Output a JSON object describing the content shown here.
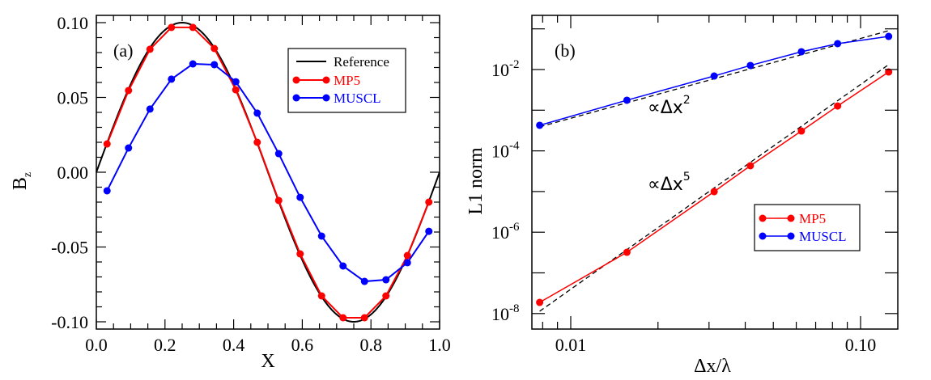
{
  "chart_data": [
    {
      "panel": "(a)",
      "type": "line",
      "title": "",
      "xlabel": "X",
      "ylabel": "B",
      "ylabel_subscript": "z",
      "xlim": [
        0.0,
        1.0
      ],
      "ylim": [
        -0.105,
        0.1055
      ],
      "xticks": [
        0.0,
        0.2,
        0.4,
        0.6,
        0.8,
        1.0
      ],
      "xtick_labels": [
        "0.0",
        "0.2",
        "0.4",
        "0.6",
        "0.8",
        "1.0"
      ],
      "xminor_step": 0.05,
      "yticks": [
        0.1,
        0.05,
        0.0,
        -0.05,
        -0.1
      ],
      "ytick_labels": [
        "0.10",
        "0.05",
        "0.00",
        "-0.05",
        "-0.10"
      ],
      "yminor_step": 0.01,
      "grid": false,
      "legend_position": "top-right",
      "reference": {
        "name": "Reference",
        "color": "#000000",
        "amplitude": 0.1,
        "function": "sin(2*pi*x)"
      },
      "x": [
        0.03125,
        0.09375,
        0.15625,
        0.21875,
        0.28125,
        0.34375,
        0.40625,
        0.46875,
        0.53125,
        0.59375,
        0.65625,
        0.71875,
        0.78125,
        0.84375,
        0.90625,
        0.96875
      ],
      "series": [
        {
          "name": "MP5",
          "color": "#ff0000",
          "markers": true,
          "values": [
            0.0189,
            0.0546,
            0.0822,
            0.0968,
            0.0968,
            0.0827,
            0.0551,
            0.02,
            -0.0189,
            -0.0546,
            -0.0827,
            -0.0973,
            -0.0973,
            -0.0827,
            -0.0557,
            -0.02
          ]
        },
        {
          "name": "MUSCL",
          "color": "#0000ff",
          "markers": true,
          "values": [
            -0.0124,
            0.0162,
            0.0422,
            0.0622,
            0.0724,
            0.0719,
            0.0605,
            0.0395,
            0.0124,
            -0.0168,
            -0.0427,
            -0.0627,
            -0.073,
            -0.0719,
            -0.0605,
            -0.0395
          ]
        }
      ]
    },
    {
      "panel": "(b)",
      "type": "line",
      "title": "",
      "xlabel": "Δx/λ",
      "ylabel": "L1 norm",
      "xscale": "log",
      "yscale": "log",
      "xlim": [
        0.00734,
        0.1344
      ],
      "ylim": [
        4.2e-09,
        0.209
      ],
      "xtick_labels": [
        "0.01",
        "0.10"
      ],
      "xticks": [
        0.01,
        0.1
      ],
      "xminor": [
        0.008,
        0.009,
        0.02,
        0.03,
        0.04,
        0.05,
        0.06,
        0.07,
        0.08,
        0.09
      ],
      "yticks_major": [
        0.01,
        0.0001,
        1e-06,
        1e-08
      ],
      "ytick_labels": [
        {
          "base": "10",
          "exp": "-2"
        },
        {
          "base": "10",
          "exp": "-4"
        },
        {
          "base": "10",
          "exp": "-6"
        },
        {
          "base": "10",
          "exp": "-8"
        }
      ],
      "yticks_minor": [
        0.1,
        0.001,
        1e-05,
        1e-07
      ],
      "grid": false,
      "legend_position": "bottom-right",
      "x": [
        0.0078125,
        0.015625,
        0.03125,
        0.041667,
        0.0625,
        0.083333,
        0.125
      ],
      "series": [
        {
          "name": "MP5",
          "color": "#ff0000",
          "markers": true,
          "values": [
            1.88e-08,
            3.21e-07,
            9.95e-06,
            4.31e-05,
            0.000308,
            0.00127,
            0.00871
          ]
        },
        {
          "name": "MUSCL",
          "color": "#0000ff",
          "markers": true,
          "values": [
            0.000425,
            0.00176,
            0.00693,
            0.0126,
            0.0274,
            0.0433,
            0.0653
          ]
        }
      ],
      "reference_lines": [
        {
          "label": "∝Δx",
          "exponent_label": "2",
          "order": 2,
          "color": "#000000",
          "style": "dashed",
          "x": [
            0.0078125,
            0.125
          ],
          "values": [
            0.00039,
            0.09
          ]
        },
        {
          "label": "∝Δx",
          "exponent_label": "5",
          "order": 5,
          "color": "#000000",
          "style": "dashed",
          "x": [
            0.0078125,
            0.125
          ],
          "values": [
            1.14e-08,
            0.0132
          ]
        }
      ]
    }
  ]
}
